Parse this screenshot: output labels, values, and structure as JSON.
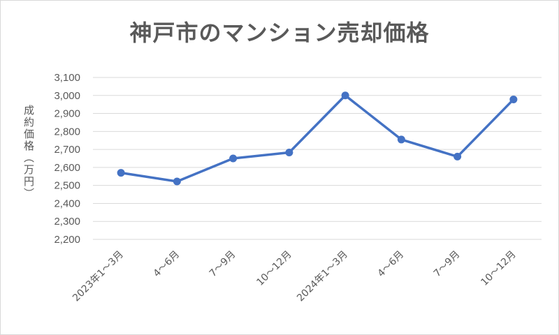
{
  "chart_data": {
    "type": "line",
    "title": "神戸市のマンション売却価格",
    "ylabel": "成約価格（万円）",
    "xlabel": "",
    "categories": [
      "2023年1～3月",
      "4～6月",
      "7～9月",
      "10～12月",
      "2024年1～3月",
      "4～6月",
      "7～9月",
      "10～12月"
    ],
    "series": [
      {
        "values": [
          2570,
          2522,
          2650,
          2683,
          3000,
          2755,
          2660,
          2978
        ]
      }
    ],
    "ylim": [
      2200,
      3100
    ],
    "yticks": [
      "2,200",
      "2,300",
      "2,400",
      "2,500",
      "2,600",
      "2,700",
      "2,800",
      "2,900",
      "3,000",
      "3,100"
    ],
    "grid": true,
    "legend": "none",
    "colors": {
      "line": "#4472c4",
      "grid": "#d9d9d9",
      "text": "#595959"
    }
  }
}
